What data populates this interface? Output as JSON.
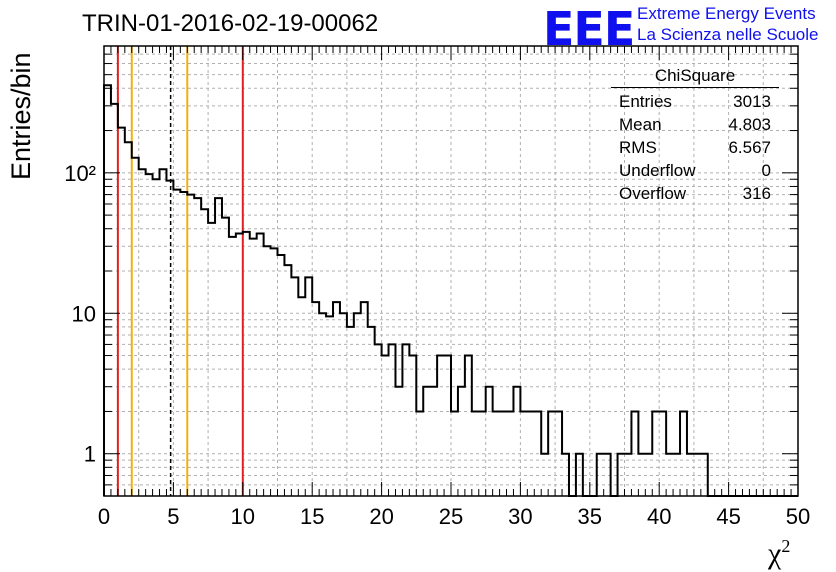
{
  "title": "TRIN-01-2016-02-19-00062",
  "logo": {
    "mark": "EEE",
    "line1": "Extreme Energy Events",
    "line2": "La Scienza nelle Scuole"
  },
  "stats": {
    "title": "ChiSquare",
    "rows": [
      {
        "label": "Entries",
        "value": "3013"
      },
      {
        "label": "Mean",
        "value": "4.803"
      },
      {
        "label": "RMS",
        "value": "6.567"
      },
      {
        "label": "Underflow",
        "value": "0"
      },
      {
        "label": "Overflow",
        "value": "316"
      }
    ]
  },
  "chart_data": {
    "type": "histogram",
    "title": "TRIN-01-2016-02-19-00062",
    "xlabel": "χ",
    "xlabel_sup": "2",
    "ylabel": "Entries/bin",
    "xlim": [
      0,
      50
    ],
    "ylim": [
      0.5,
      800
    ],
    "yscale": "log",
    "bin_width": 0.5,
    "x_ticks": [
      0,
      5,
      10,
      15,
      20,
      25,
      30,
      35,
      40,
      45,
      50
    ],
    "y_tick_labels": [
      "1",
      "10",
      "10²"
    ],
    "grid": true,
    "bin_counts": [
      420,
      310,
      210,
      165,
      128,
      106,
      98,
      90,
      106,
      88,
      76,
      73,
      70,
      66,
      55,
      44,
      66,
      48,
      35,
      37,
      38,
      34,
      37,
      30,
      29,
      26,
      22,
      18,
      13,
      18,
      12,
      10,
      9.5,
      12,
      10,
      8,
      10,
      12,
      8,
      6,
      5,
      6,
      3,
      6,
      5,
      2,
      3,
      3,
      5,
      5,
      2,
      3,
      5,
      2,
      2,
      3,
      2,
      2,
      2,
      3,
      2,
      2,
      2,
      1,
      2,
      2,
      1,
      0,
      1,
      0,
      0,
      1,
      1,
      0,
      1,
      1,
      2,
      1,
      1,
      2,
      2,
      1,
      1,
      2,
      1,
      1,
      1,
      0,
      0,
      0,
      0,
      0,
      0,
      0,
      0,
      0,
      0,
      0,
      0,
      0
    ],
    "vertical_lines": [
      {
        "x": 1,
        "color": "#e02020",
        "style": "solid"
      },
      {
        "x": 2,
        "color": "#f0b010",
        "style": "solid"
      },
      {
        "x": 4.8,
        "color": "#000000",
        "style": "dashed"
      },
      {
        "x": 6,
        "color": "#f0b010",
        "style": "solid"
      },
      {
        "x": 10,
        "color": "#e02020",
        "style": "solid"
      }
    ],
    "legend_position": "top-right"
  }
}
